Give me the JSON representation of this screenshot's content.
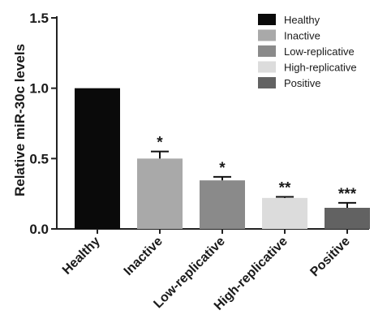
{
  "chart_data": {
    "type": "bar",
    "ylabel": "Relative miR-30c levels",
    "xlabel": "",
    "ylim": [
      0,
      1.5
    ],
    "yticks": [
      "0.0",
      "0.5",
      "1.0",
      "1.5"
    ],
    "ytick_values": [
      0,
      0.5,
      1.0,
      1.5
    ],
    "categories": [
      "Healthy",
      "Inactive",
      "Low-replicative",
      "High-replicative",
      "Positive"
    ],
    "values": [
      1.0,
      0.5,
      0.345,
      0.22,
      0.15
    ],
    "errors": [
      0.0,
      0.05,
      0.025,
      0.008,
      0.035
    ],
    "significance": [
      "",
      "*",
      "*",
      "**",
      "***"
    ],
    "colors": [
      "#0a0a0a",
      "#a9a9a9",
      "#8a8a8a",
      "#dcdcdc",
      "#626262"
    ],
    "legend": {
      "position": "top-right",
      "entries": [
        "Healthy",
        "Inactive",
        "Low-replicative",
        "High-replicative",
        "Positive"
      ]
    },
    "grid": false
  }
}
